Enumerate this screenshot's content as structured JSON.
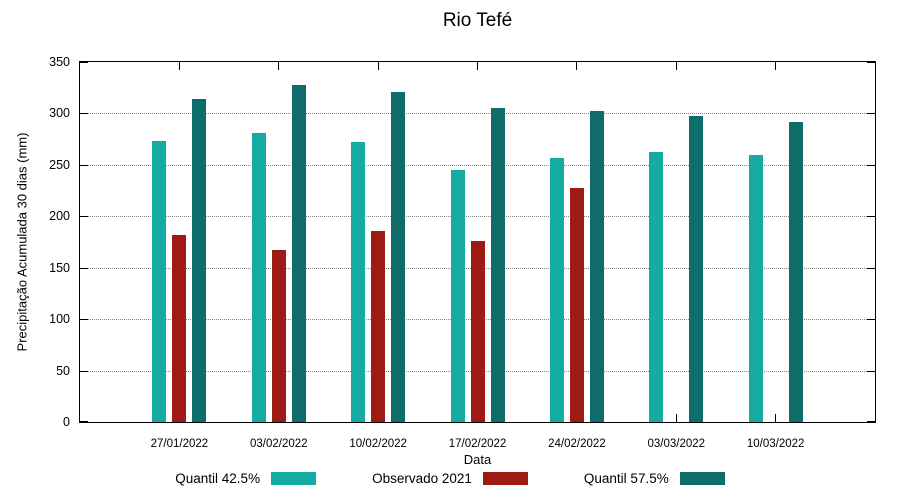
{
  "chart_data": {
    "type": "bar",
    "title": "Rio Tefé",
    "xlabel": "Data",
    "ylabel": "Precipitação Acumulada 30 dias (mm)",
    "ylim": [
      0,
      350
    ],
    "yticks": [
      0,
      50,
      100,
      150,
      200,
      250,
      300,
      350
    ],
    "grid": "horizontal-dotted",
    "legend_position": "bottom-center",
    "categories": [
      "27/01/2022",
      "03/02/2022",
      "10/02/2022",
      "17/02/2022",
      "24/02/2022",
      "03/03/2022",
      "10/03/2022"
    ],
    "series": [
      {
        "name": "Quantil 42.5%",
        "color": "#16AAA5",
        "values": [
          273,
          281,
          272,
          245,
          257,
          263,
          260
        ]
      },
      {
        "name": "Observado 2021",
        "color": "#9E1A14",
        "values": [
          182,
          167,
          186,
          176,
          228,
          null,
          null
        ]
      },
      {
        "name": "Quantil 57.5%",
        "color": "#0E6C69",
        "values": [
          314,
          328,
          321,
          305,
          302,
          298,
          292
        ]
      }
    ]
  }
}
